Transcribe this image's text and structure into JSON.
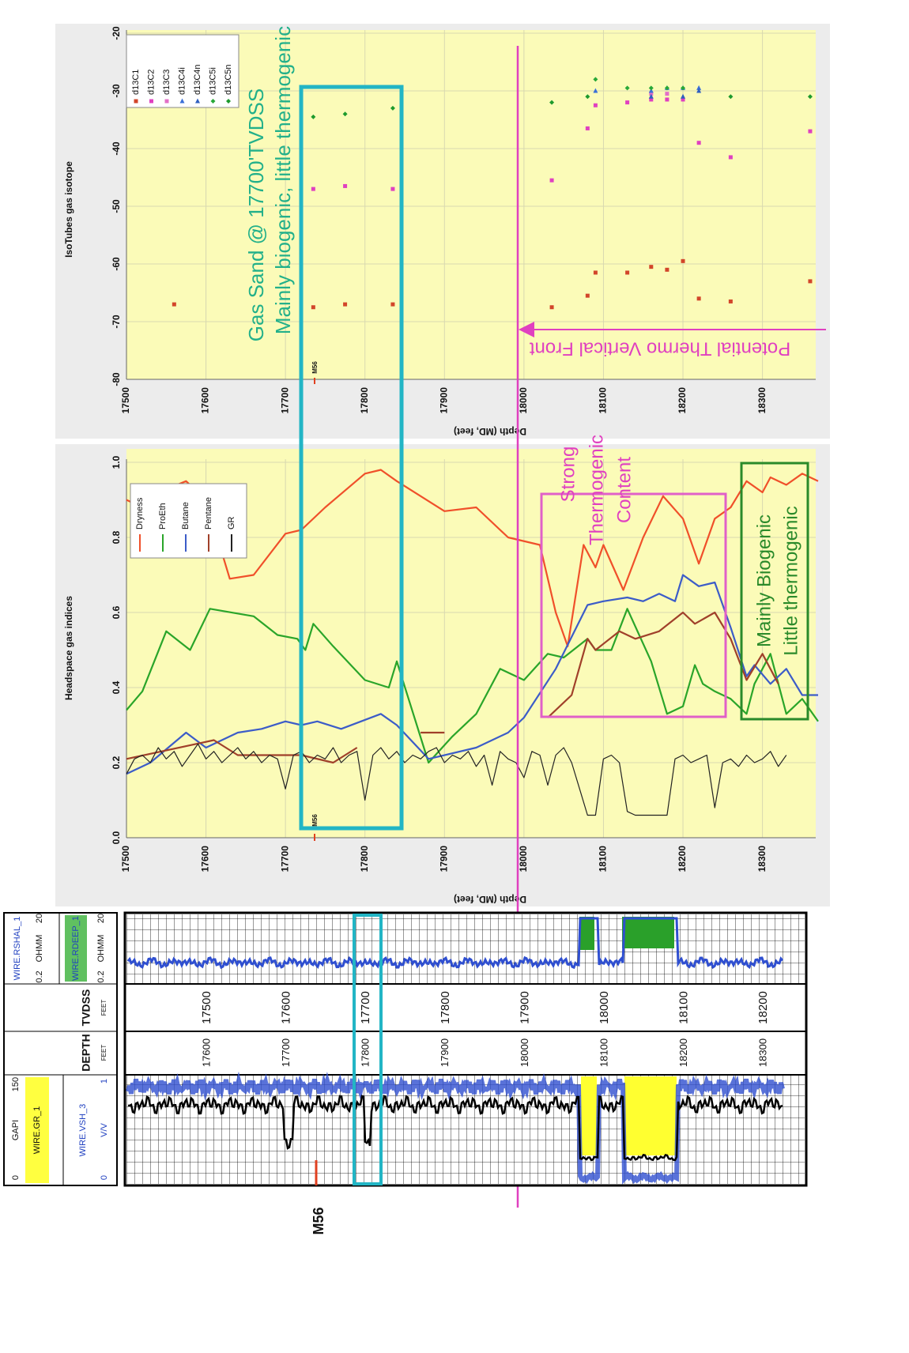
{
  "chart_data": [
    {
      "type": "scatter",
      "title": "IsoTubes gas isotope",
      "xlabel": "Depth (MD, feet)",
      "xlim": [
        17500,
        18370
      ],
      "ylim": [
        -80,
        -20
      ],
      "xticks": [
        17500,
        17600,
        17700,
        17800,
        17900,
        18000,
        18100,
        18200,
        18300
      ],
      "yticks": [
        -80,
        -70,
        -60,
        -50,
        -40,
        -30,
        -20
      ],
      "grid": true,
      "legend": "top-left",
      "series": [
        {
          "name": "d13C1",
          "color": "#d2452a",
          "marker": "square",
          "x": [
            17560,
            17735,
            17775,
            17835,
            18035,
            18080,
            18090,
            18130,
            18160,
            18180,
            18200,
            18220,
            18260,
            18360
          ],
          "values": [
            -67,
            -67.5,
            -67,
            -67,
            -67.5,
            -65.5,
            -61.5,
            -61.5,
            -60.5,
            -61,
            -59.5,
            -66,
            -66.5,
            -63
          ]
        },
        {
          "name": "d13C2",
          "color": "#e040c0",
          "marker": "square",
          "x": [
            17735,
            17775,
            17835,
            18035,
            18080,
            18090,
            18130,
            18160,
            18180,
            18200,
            18220,
            18260,
            18360
          ],
          "values": [
            -47,
            -46.5,
            -47,
            -45.5,
            -36.5,
            -32.5,
            -32,
            -31.5,
            -31.5,
            -31.5,
            -39,
            -41.5,
            -37
          ]
        },
        {
          "name": "d13C3",
          "color": "#e36fc8",
          "marker": "square",
          "x": [
            18160,
            18180
          ],
          "values": [
            -30.5,
            -30.5
          ]
        },
        {
          "name": "d13C4i",
          "color": "#3a6fd8",
          "marker": "triangle",
          "x": [
            18090,
            18160,
            18180,
            18200,
            18220
          ],
          "values": [
            -30,
            -30,
            -29.5,
            -29.5,
            -29.5
          ]
        },
        {
          "name": "d13C4n",
          "color": "#2f5fc0",
          "marker": "triangle",
          "x": [
            18160,
            18200,
            18220
          ],
          "values": [
            -31,
            -31,
            -30
          ]
        },
        {
          "name": "d13C5i",
          "color": "#28a838",
          "marker": "diamond",
          "x": [
            18090,
            18130,
            18160,
            18180,
            18200
          ],
          "values": [
            -28,
            -29.5,
            -29.5,
            -29.5,
            -29.5
          ]
        },
        {
          "name": "d13C5n",
          "color": "#1d9a2d",
          "marker": "diamond",
          "x": [
            17735,
            17775,
            17835,
            18035,
            18080,
            18260,
            18360
          ],
          "values": [
            -34.5,
            -34,
            -33,
            -32,
            -31,
            -31,
            -31
          ]
        }
      ],
      "annotations": [
        "Gas Sand @ 17700'TVDSS",
        "Mainly biogenic, little thermogenic",
        "Potential Thermo Vertical Front"
      ],
      "marker_label": "M56"
    },
    {
      "type": "line",
      "title": "Headspace gas indices",
      "xlabel": "Depth (MD, feet)",
      "xlim": [
        17500,
        18370
      ],
      "ylim": [
        0,
        1
      ],
      "xticks": [
        17500,
        17600,
        17700,
        17800,
        17900,
        18000,
        18100,
        18200,
        18300
      ],
      "yticks": [
        {
          "value": 0,
          "label": "0.0"
        },
        0.2,
        0.4,
        0.6,
        0.8,
        {
          "value": 1,
          "label": "1.0"
        }
      ],
      "grid": true,
      "legend": "top-left",
      "series": [
        {
          "name": "Dryness",
          "color": "#f0502a",
          "x": [
            17500,
            17520,
            17540,
            17575,
            17600,
            17630,
            17660,
            17700,
            17720,
            17750,
            17800,
            17820,
            17840,
            17900,
            17940,
            17980,
            18020,
            18040,
            18055,
            18075,
            18090,
            18100,
            18125,
            18150,
            18175,
            18200,
            18220,
            18240,
            18260,
            18280,
            18300,
            18310,
            18330,
            18350,
            18370
          ],
          "values": [
            0.9,
            0.88,
            0.92,
            0.95,
            0.9,
            0.69,
            0.7,
            0.81,
            0.82,
            0.88,
            0.97,
            0.98,
            0.95,
            0.87,
            0.88,
            0.8,
            0.78,
            0.6,
            0.51,
            0.78,
            0.72,
            0.78,
            0.66,
            0.8,
            0.91,
            0.85,
            0.73,
            0.85,
            0.88,
            0.95,
            0.92,
            0.96,
            0.94,
            0.97,
            0.95
          ]
        },
        {
          "name": "ProEth",
          "color": "#2aa52a",
          "x": [
            17500,
            17520,
            17550,
            17580,
            17605,
            17660,
            17690,
            17715,
            17725,
            17735,
            17760,
            17800,
            17830,
            17840,
            17880,
            17910,
            17940,
            17970,
            18000,
            18030,
            18050,
            18080,
            18090,
            18110,
            18130,
            18160,
            18180,
            18200,
            18215,
            18225,
            18240,
            18260,
            18280,
            18290,
            18310,
            18330,
            18350,
            18370
          ],
          "values": [
            0.34,
            0.39,
            0.55,
            0.5,
            0.61,
            0.59,
            0.54,
            0.53,
            0.5,
            0.57,
            0.51,
            0.42,
            0.4,
            0.47,
            0.2,
            0.27,
            0.33,
            0.45,
            0.42,
            0.49,
            0.48,
            0.53,
            0.5,
            0.5,
            0.61,
            0.47,
            0.33,
            0.35,
            0.46,
            0.41,
            0.39,
            0.37,
            0.33,
            0.41,
            0.49,
            0.33,
            0.37,
            0.31
          ]
        },
        {
          "name": "Butane",
          "color": "#3c5cc8",
          "x": [
            17500,
            17530,
            17575,
            17600,
            17640,
            17670,
            17700,
            17720,
            17740,
            17770,
            17820,
            17840,
            17880,
            17940,
            17980,
            18000,
            18040,
            18080,
            18100,
            18130,
            18150,
            18170,
            18190,
            18200,
            18220,
            18240,
            18260,
            18280,
            18290,
            18310,
            18330,
            18350,
            18370
          ],
          "values": [
            0.17,
            0.2,
            0.28,
            0.24,
            0.28,
            0.29,
            0.31,
            0.3,
            0.31,
            0.29,
            0.33,
            0.3,
            0.21,
            0.24,
            0.28,
            0.32,
            0.45,
            0.62,
            0.63,
            0.64,
            0.63,
            0.65,
            0.63,
            0.7,
            0.67,
            0.68,
            0.56,
            0.43,
            0.46,
            0.41,
            0.45,
            0.38,
            0.38
          ]
        },
        {
          "name": "Pentane",
          "color": "#a0402a",
          "x": [
            17500,
            17610,
            17640,
            17680,
            17720,
            17760,
            17790,
            17840,
            17870,
            17900,
            17960,
            18030,
            18060,
            18080,
            18090,
            18120,
            18140,
            18170,
            18200,
            18215,
            18240,
            18260,
            18280,
            18300,
            18320
          ],
          "values": [
            0.21,
            0.26,
            0.22,
            0.22,
            0.22,
            0.2,
            0.24,
            null,
            0.28,
            0.28,
            null,
            0.32,
            0.38,
            0.53,
            0.5,
            0.55,
            0.53,
            0.55,
            0.6,
            0.57,
            0.6,
            0.53,
            0.42,
            0.49,
            0.41
          ]
        },
        {
          "name": "GR",
          "color": "#222222",
          "x": [
            17500,
            17510,
            17520,
            17530,
            17540,
            17550,
            17560,
            17570,
            17580,
            17590,
            17600,
            17610,
            17620,
            17630,
            17640,
            17650,
            17660,
            17670,
            17680,
            17690,
            17700,
            17710,
            17720,
            17730,
            17740,
            17750,
            17760,
            17770,
            17780,
            17790,
            17800,
            17810,
            17820,
            17830,
            17840,
            17850,
            17860,
            17870,
            17880,
            17890,
            17900,
            17910,
            17920,
            17930,
            17940,
            17950,
            17960,
            17970,
            17980,
            17990,
            18000,
            18010,
            18020,
            18030,
            18040,
            18050,
            18060,
            18070,
            18080,
            18090,
            18100,
            18110,
            18120,
            18130,
            18140,
            18150,
            18160,
            18170,
            18180,
            18190,
            18200,
            18210,
            18220,
            18230,
            18240,
            18250,
            18260,
            18270,
            18280,
            18290,
            18300,
            18310,
            18320,
            18330
          ],
          "values": [
            0.17,
            0.21,
            0.22,
            0.2,
            0.24,
            0.21,
            0.23,
            0.19,
            0.22,
            0.25,
            0.21,
            0.23,
            0.2,
            0.22,
            0.24,
            0.21,
            0.23,
            0.2,
            0.22,
            0.21,
            0.13,
            0.22,
            0.23,
            0.2,
            0.22,
            0.21,
            0.24,
            0.2,
            0.22,
            0.23,
            0.1,
            0.22,
            0.24,
            0.21,
            0.23,
            0.2,
            0.22,
            0.21,
            0.23,
            0.24,
            0.2,
            0.22,
            0.21,
            0.23,
            0.19,
            0.22,
            0.14,
            0.23,
            0.21,
            0.2,
            0.16,
            0.23,
            0.22,
            0.14,
            0.22,
            0.24,
            0.2,
            0.13,
            0.06,
            0.06,
            0.21,
            0.22,
            0.2,
            0.07,
            0.06,
            0.06,
            0.06,
            0.06,
            0.06,
            0.21,
            0.22,
            0.2,
            0.21,
            0.22,
            0.08,
            0.2,
            0.21,
            0.19,
            0.22,
            0.2,
            0.21,
            0.23,
            0.19,
            0.22
          ]
        }
      ],
      "annotations": [
        [
          "Strong",
          "Thermogenic",
          "Content"
        ],
        [
          "Mainly Biogenic",
          "Little thermogenic"
        ]
      ],
      "marker_label": "M56"
    }
  ],
  "well_log": {
    "gr": {
      "name": "WIRE.GR_1",
      "min": 0,
      "unit": "GAPI",
      "max": 150
    },
    "vsh": {
      "name": "WIRE.VSH_3",
      "min": 0,
      "unit": "V/V",
      "max": 1
    },
    "depth": {
      "title": "DEPTH",
      "unit": "FEET"
    },
    "tvdss": {
      "title": "TVDSS",
      "unit": "FEET"
    },
    "rshal": {
      "name": "WIRE.RSHAL_1",
      "min": 0.2,
      "unit": "OHMM",
      "max": 20
    },
    "rdeep": {
      "name": "WIRE.RDEEP_1",
      "min": 0.2,
      "unit": "OHMM",
      "max": 20
    },
    "md_labels": [
      17600,
      17700,
      17800,
      17900,
      18000,
      18100,
      18200,
      18300
    ],
    "tvdss_labels": [
      17500,
      17600,
      17700,
      17800,
      17900,
      18000,
      18100,
      18200
    ],
    "marker": "M56"
  }
}
